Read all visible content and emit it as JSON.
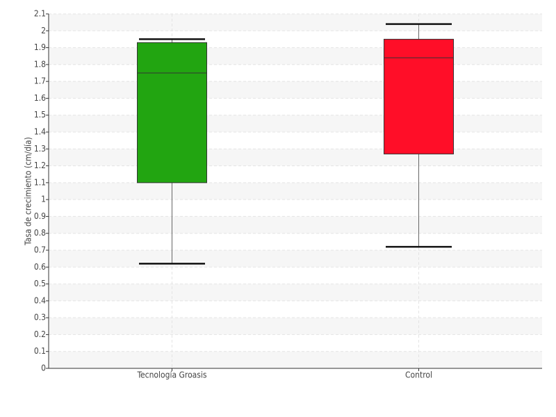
{
  "chart_data": {
    "type": "box",
    "ylabel": "Tasa de crecimiento (cm/día)",
    "categories": [
      "Tecnología Groasis",
      "Control"
    ],
    "boxes": [
      {
        "color": "#22a511",
        "min": 0.62,
        "q1": 1.1,
        "median": 1.75,
        "q3": 1.93,
        "max": 1.95
      },
      {
        "color": "#ff0e28",
        "min": 0.72,
        "q1": 1.27,
        "median": 1.84,
        "q3": 1.95,
        "max": 2.04
      }
    ],
    "ylim": [
      0,
      2.1
    ],
    "yticks": [
      0,
      0.1,
      0.2,
      0.3,
      0.4,
      0.5,
      0.6,
      0.7,
      0.8,
      0.9,
      1,
      1.1,
      1.2,
      1.3,
      1.4,
      1.5,
      1.6,
      1.7,
      1.8,
      1.9,
      2,
      2.1
    ],
    "grid": true
  }
}
